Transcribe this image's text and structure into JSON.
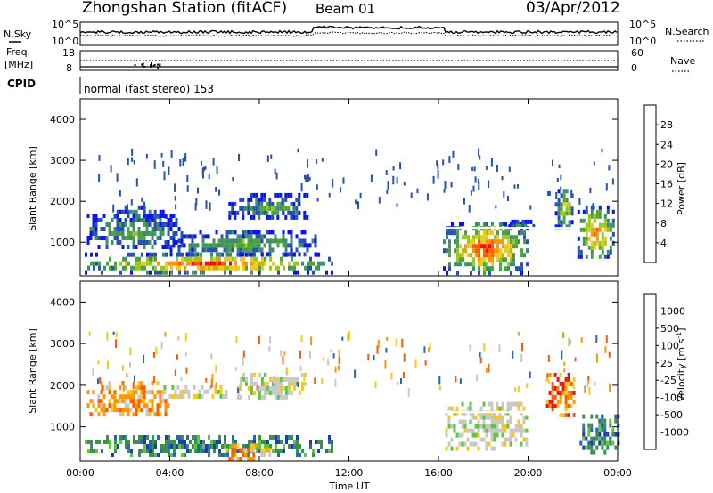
{
  "header": {
    "station": "Zhongshan Station (fitACF)",
    "beam": "Beam 01",
    "date": "03/Apr/2012"
  },
  "status": {
    "nsky_label": "N.Sky",
    "nsearch_label": "N.Search",
    "noise_ticks_left": [
      "10^5",
      "10^0"
    ],
    "noise_ticks_right": [
      "10^5",
      "10^0"
    ],
    "freq_label": "Freq.",
    "freq_unit": "[MHz]",
    "freq_ticks": [
      "18",
      "8"
    ],
    "nave_label": "Nave",
    "nave_ticks": [
      "60",
      "0"
    ],
    "cpid_label": "CPID",
    "cpid_text": "normal (fast stereo) 153"
  },
  "chart_data": [
    {
      "type": "heatmap",
      "parameter": "Power",
      "ylabel": "Slant Range [km]",
      "xlabel": "",
      "ylim": [
        180,
        4500
      ],
      "yticks": [
        "4000",
        "3000",
        "2000",
        "1000"
      ],
      "colorbar_label": "Power [dB]",
      "colorbar_ticks": [
        "28",
        "24",
        "20",
        "16",
        "12",
        "8",
        "4"
      ],
      "colorbar_colors": [
        "#0a14ee",
        "#2652b4",
        "#3f8c6f",
        "#4ca43c",
        "#96c81e",
        "#f0c81e",
        "#ff9600",
        "#ff5a00",
        "#ee1010"
      ],
      "echo_regions": [
        {
          "t": [
            0.2,
            11.2
          ],
          "r": [
            300,
            750
          ],
          "peak_db": 30
        },
        {
          "t": [
            0.3,
            4.5
          ],
          "r": [
            850,
            1700
          ],
          "peak_db": 14
        },
        {
          "t": [
            1.5,
            3.8
          ],
          "r": [
            1600,
            1900
          ],
          "peak_db": 10
        },
        {
          "t": [
            6.5,
            10.2
          ],
          "r": [
            1600,
            2200
          ],
          "peak_db": 12
        },
        {
          "t": [
            4.0,
            10.5
          ],
          "r": [
            700,
            1300
          ],
          "peak_db": 14
        },
        {
          "t": [
            16.2,
            20.0
          ],
          "r": [
            300,
            1500
          ],
          "peak_db": 30
        },
        {
          "t": [
            19.0,
            20.2
          ],
          "r": [
            1350,
            1550
          ],
          "peak_db": 10
        },
        {
          "t": [
            21.2,
            22.0
          ],
          "r": [
            1400,
            2300
          ],
          "peak_db": 22
        },
        {
          "t": [
            22.2,
            23.8
          ],
          "r": [
            600,
            1900
          ],
          "peak_db": 26
        }
      ]
    },
    {
      "type": "heatmap",
      "parameter": "Velocity",
      "ylabel": "Slant Range [km]",
      "xlabel": "Time UT",
      "ylim": [
        180,
        4500
      ],
      "yticks": [
        "4000",
        "3000",
        "2000",
        "1000"
      ],
      "xticks": [
        "00:00",
        "04:00",
        "08:00",
        "12:00",
        "16:00",
        "20:00",
        "00:00"
      ],
      "x_hours": [
        0,
        4,
        8,
        12,
        16,
        20,
        24
      ],
      "colorbar_label": "Velocity [m s",
      "colorbar_label_sup": "-1",
      "colorbar_label_end": "]",
      "colorbar_ticks": [
        "1000",
        "500",
        "100",
        "25",
        "-25",
        "-100",
        "-500",
        "-1000"
      ],
      "colorbar_colors": [
        "#1e3cb4",
        "#2a64b4",
        "#3a9052",
        "#5cc83c",
        "#c8c8c8",
        "#f5c819",
        "#ff9600",
        "#ff5a00",
        "#ee1010"
      ],
      "echo_regions": [
        {
          "t": [
            0.2,
            11.2
          ],
          "r": [
            350,
            800
          ],
          "v": "toward-slow"
        },
        {
          "t": [
            0.3,
            4.0
          ],
          "r": [
            1300,
            2100
          ],
          "v": "away-medium"
        },
        {
          "t": [
            3.6,
            6.5
          ],
          "r": [
            1700,
            2000
          ],
          "v": "near-zero"
        },
        {
          "t": [
            7.0,
            10.0
          ],
          "r": [
            1700,
            2300
          ],
          "v": "near-zero"
        },
        {
          "t": [
            6.5,
            8.5
          ],
          "r": [
            250,
            600
          ],
          "v": "away-medium"
        },
        {
          "t": [
            16.3,
            20.0
          ],
          "r": [
            500,
            1600
          ],
          "v": "near-zero"
        },
        {
          "t": [
            20.8,
            22.0
          ],
          "r": [
            1300,
            2300
          ],
          "v": "away-fast"
        },
        {
          "t": [
            22.3,
            24.0
          ],
          "r": [
            400,
            1300
          ],
          "v": "toward-slow"
        }
      ]
    }
  ]
}
